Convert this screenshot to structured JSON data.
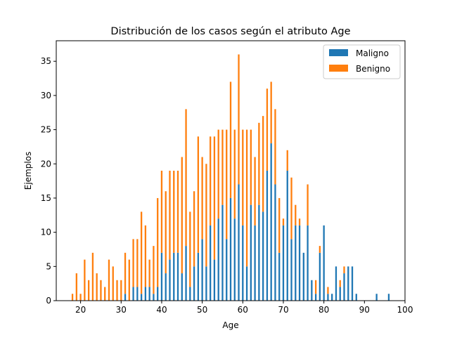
{
  "chart_data": {
    "type": "bar",
    "stacked": true,
    "title": "Distribución de los casos según el atributo Age",
    "xlabel": "Age",
    "ylabel": "Ejemplos",
    "xlim": [
      14,
      100
    ],
    "ylim": [
      0,
      38
    ],
    "xticks": [
      "20",
      "30",
      "40",
      "50",
      "60",
      "70",
      "80",
      "90",
      "100"
    ],
    "yticks": [
      "0",
      "5",
      "10",
      "15",
      "20",
      "25",
      "30",
      "35"
    ],
    "legend": {
      "position": "top-right",
      "entries": [
        "Maligno",
        "Benigno"
      ]
    },
    "colors": {
      "Maligno": "#1f77b4",
      "Benigno": "#ff7f0e"
    },
    "x": [
      18,
      19,
      20,
      21,
      22,
      23,
      24,
      25,
      26,
      27,
      28,
      29,
      30,
      31,
      32,
      33,
      34,
      35,
      36,
      37,
      38,
      39,
      40,
      41,
      42,
      43,
      44,
      45,
      46,
      47,
      48,
      49,
      50,
      51,
      52,
      53,
      54,
      55,
      56,
      57,
      58,
      59,
      60,
      61,
      62,
      63,
      64,
      65,
      66,
      67,
      68,
      69,
      70,
      71,
      72,
      73,
      74,
      75,
      76,
      77,
      78,
      79,
      80,
      81,
      82,
      83,
      84,
      85,
      86,
      87,
      88,
      93,
      96
    ],
    "series": [
      {
        "name": "Maligno",
        "values": [
          0,
          0,
          0,
          0,
          0,
          0,
          0,
          0,
          0,
          0,
          0,
          0,
          0,
          1,
          0,
          2,
          2,
          1,
          2,
          2,
          1,
          2,
          7,
          4,
          6,
          7,
          7,
          4,
          8,
          2,
          5,
          7,
          9,
          5,
          11,
          6,
          12,
          14,
          9,
          15,
          12,
          17,
          11,
          5,
          14,
          11,
          14,
          13,
          19,
          23,
          17,
          7,
          11,
          19,
          9,
          11,
          11,
          7,
          11,
          3,
          1,
          7,
          11,
          1,
          1,
          5,
          2,
          4,
          5,
          5,
          1,
          1,
          1
        ]
      },
      {
        "name": "Benigno",
        "values": [
          1,
          4,
          1,
          6,
          3,
          7,
          4,
          3,
          2,
          6,
          5,
          3,
          3,
          6,
          6,
          7,
          7,
          12,
          9,
          4,
          7,
          13,
          12,
          12,
          13,
          12,
          12,
          17,
          20,
          11,
          11,
          17,
          12,
          15,
          13,
          18,
          13,
          11,
          16,
          17,
          13,
          19,
          14,
          20,
          11,
          10,
          12,
          14,
          12,
          9,
          11,
          8,
          1,
          3,
          9,
          3,
          1,
          0,
          6,
          0,
          2,
          1,
          0,
          1,
          0,
          0,
          1,
          1,
          0,
          0,
          0,
          0,
          0
        ]
      }
    ]
  }
}
